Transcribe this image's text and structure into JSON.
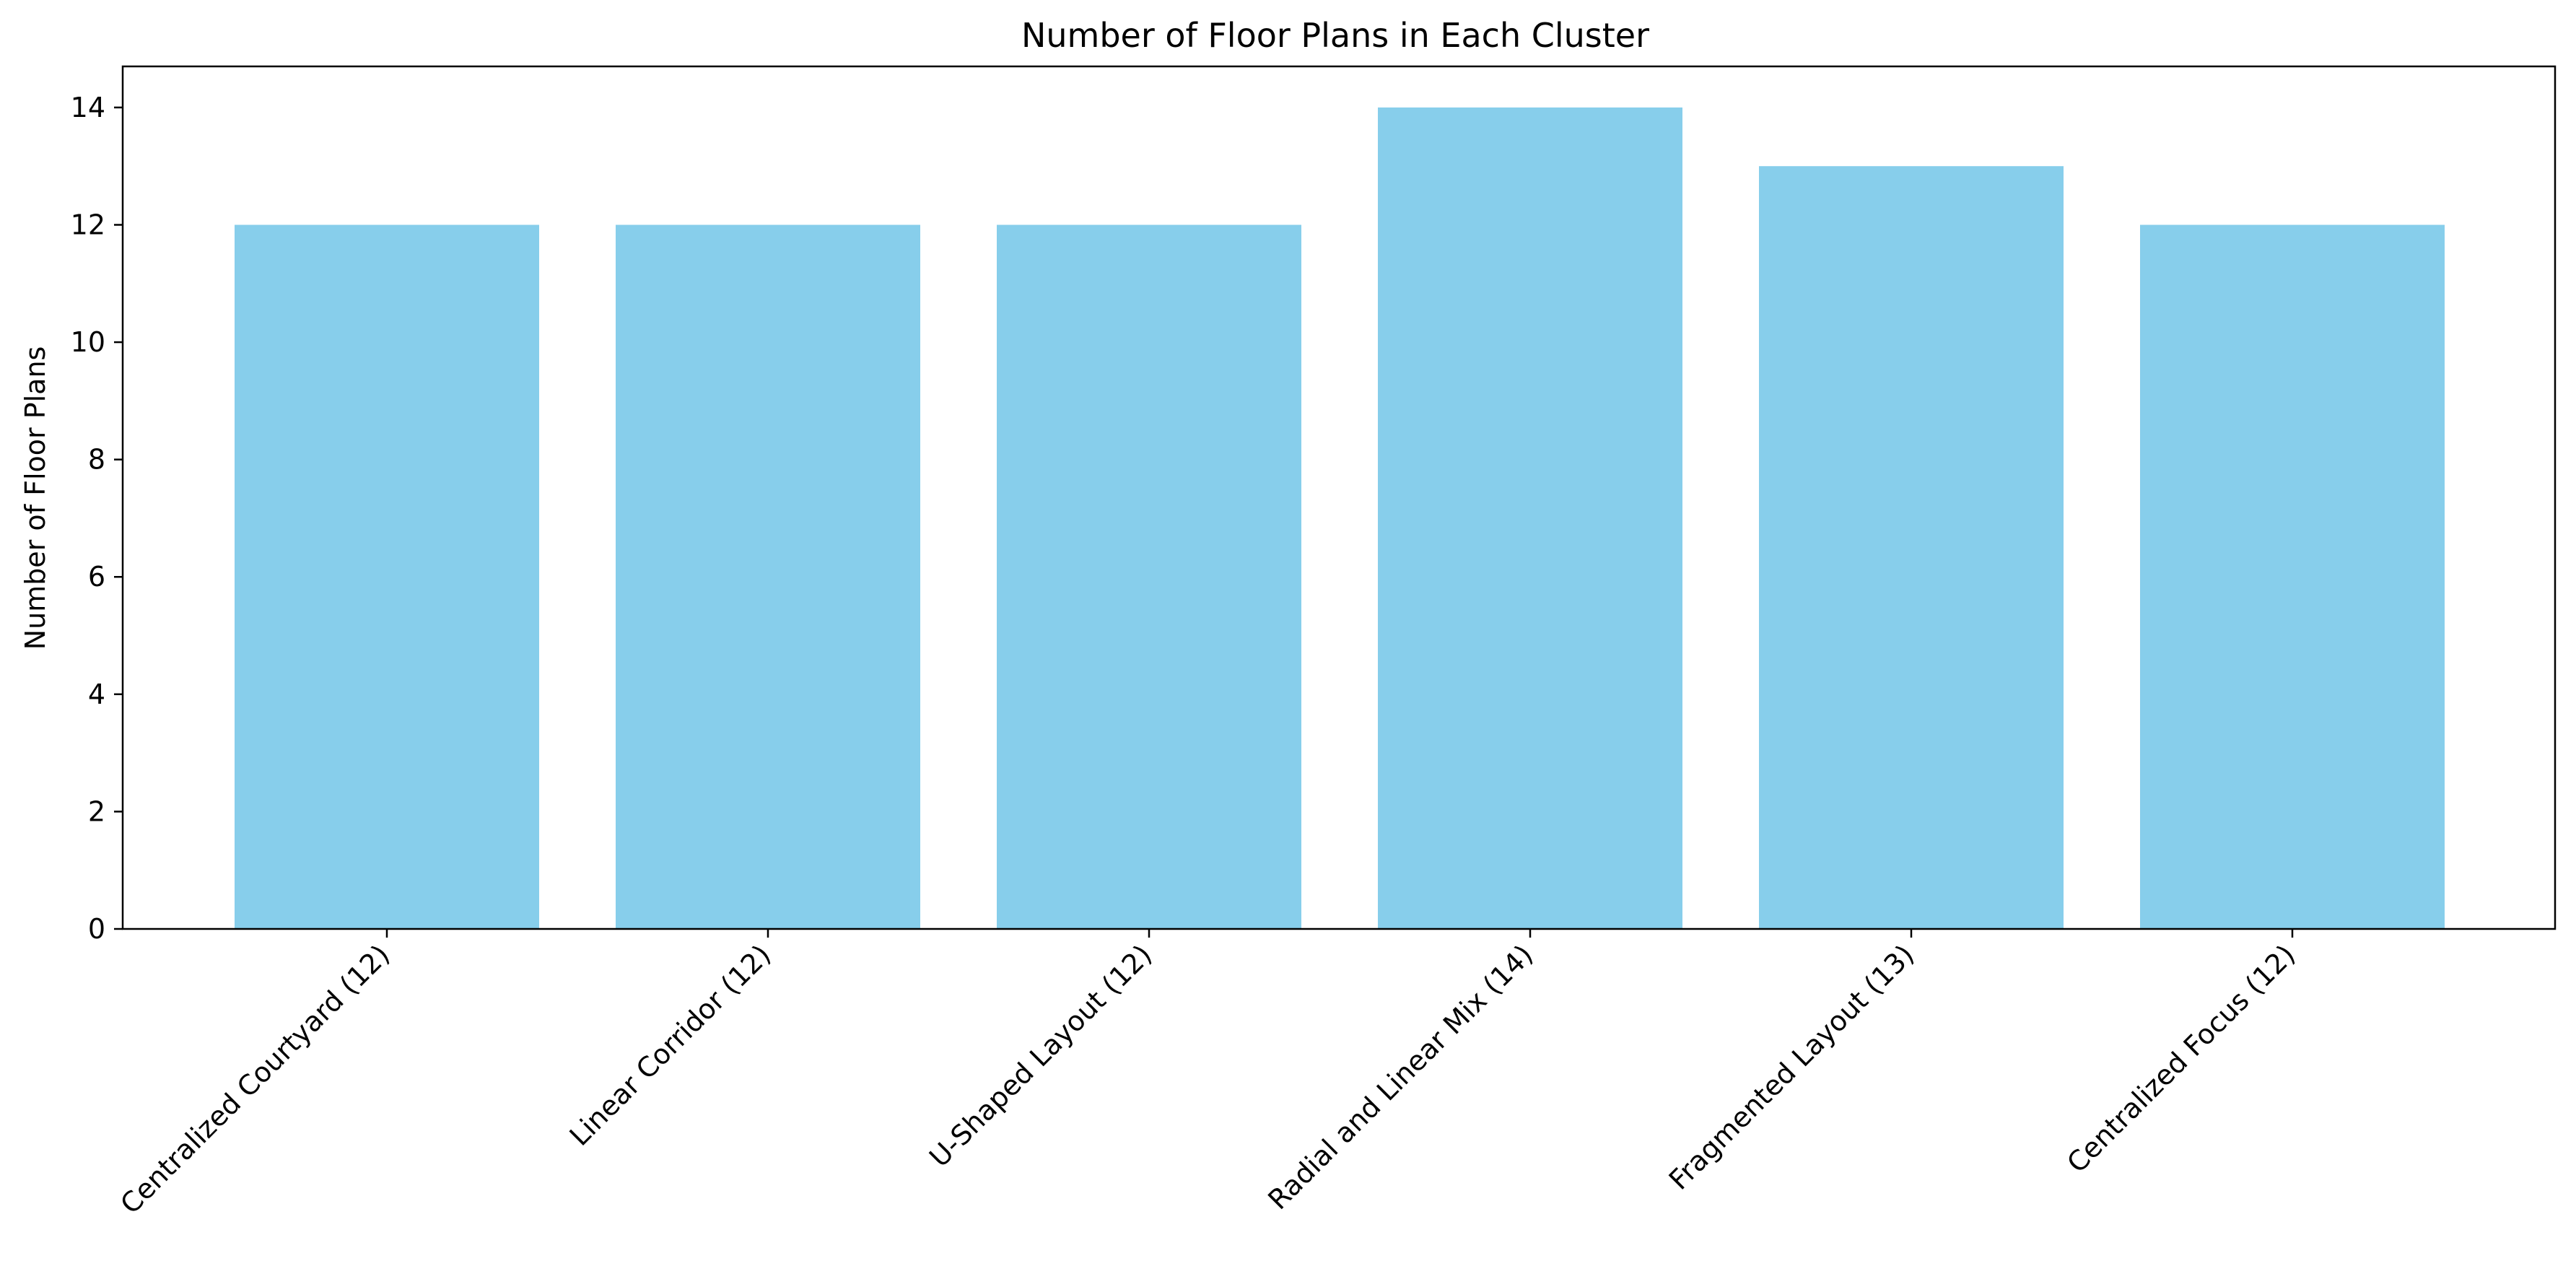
{
  "chart_data": {
    "type": "bar",
    "title": "Number of Floor Plans in Each Cluster",
    "xlabel": "",
    "ylabel": "Number of Floor Plans",
    "categories": [
      "Centralized Courtyard (12)",
      "Linear Corridor (12)",
      "U-Shaped Layout (12)",
      "Radial and Linear Mix (14)",
      "Fragmented Layout (13)",
      "Centralized Focus (12)"
    ],
    "values": [
      12,
      12,
      12,
      14,
      13,
      12
    ],
    "ylim": [
      0,
      14.7
    ],
    "yticks": [
      0,
      2,
      4,
      6,
      8,
      10,
      12,
      14
    ],
    "bar_color": "#87CEEB",
    "grid": false,
    "legend": "none"
  }
}
